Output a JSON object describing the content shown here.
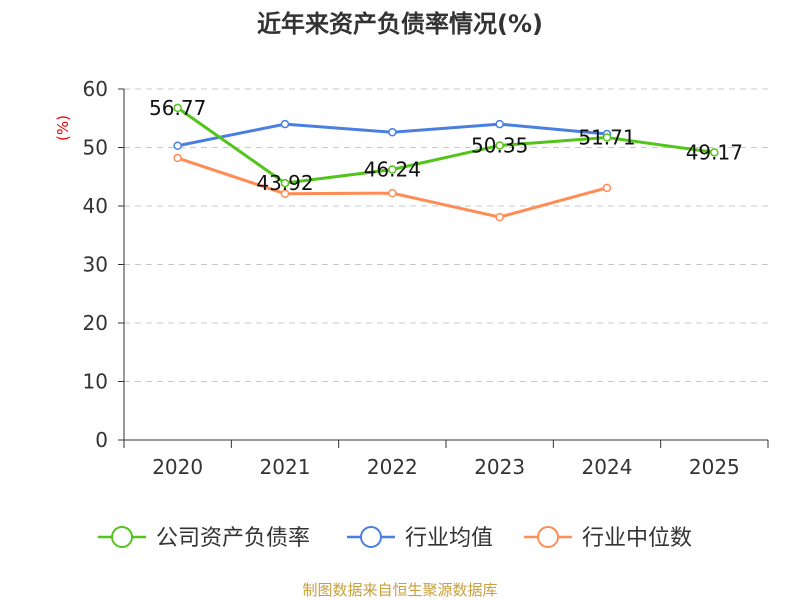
{
  "chart_data": {
    "type": "line",
    "title": "近年来资产负债率情况(%)",
    "ylabel": "(%)",
    "xlabel": "",
    "categories": [
      "2020",
      "2021",
      "2022",
      "2023",
      "2024",
      "2025"
    ],
    "ylim": [
      0,
      60
    ],
    "yticks": [
      "0",
      "10",
      "20",
      "30",
      "40",
      "50",
      "60"
    ],
    "grid": true,
    "legend_position": "bottom",
    "series": [
      {
        "name": "公司资产负债率",
        "color": "#52c41a",
        "values": [
          56.77,
          43.92,
          46.24,
          50.35,
          51.71,
          49.17
        ],
        "labels": [
          "56.77",
          "43.92",
          "46.24",
          "50.35",
          "51.71",
          "49.17"
        ]
      },
      {
        "name": "行业均值",
        "color": "#4a7ee0",
        "values": [
          50.3,
          54.0,
          52.6,
          54.0,
          52.3,
          null
        ]
      },
      {
        "name": "行业中位数",
        "color": "#ff8c55",
        "values": [
          48.2,
          42.1,
          42.2,
          38.1,
          43.1,
          null
        ]
      }
    ]
  },
  "footer": "制图数据来自恒生聚源数据库"
}
